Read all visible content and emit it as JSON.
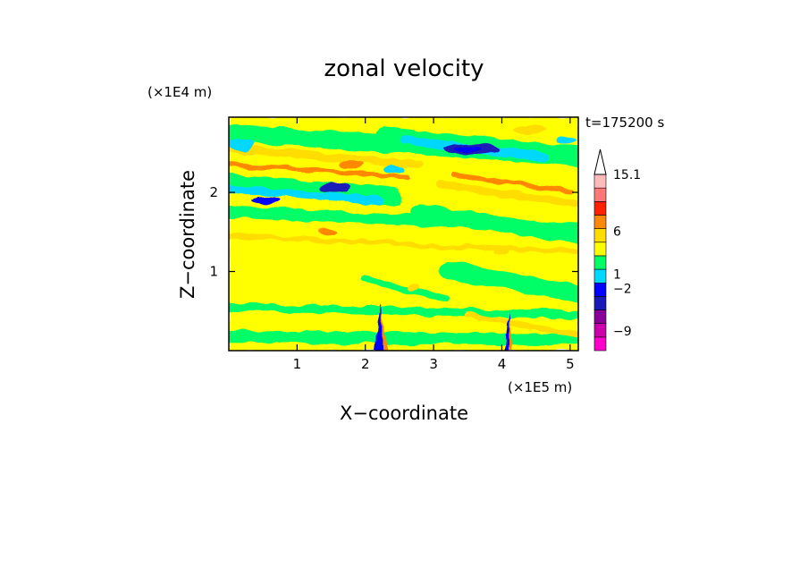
{
  "chart_data": {
    "type": "heatmap",
    "title": "zonal velocity",
    "xlabel": "X−coordinate",
    "ylabel": "Z−coordinate",
    "x_unit": "(×1E5 m)",
    "y_unit": "(×1E4 m)",
    "time_label": "t=175200 s",
    "xlim": [
      0,
      5.12
    ],
    "ylim": [
      0,
      2.95
    ],
    "x_ticks": [
      1,
      2,
      3,
      4,
      5
    ],
    "y_ticks": [
      1,
      2
    ],
    "colorbar": {
      "labeled_levels": [
        "15.1",
        "6",
        "1",
        "−2",
        "−9"
      ],
      "colors": [
        "#ff00cc",
        "#cc00aa",
        "#880099",
        "#1a1ab8",
        "#0000ff",
        "#00d8ff",
        "#00ff66",
        "#ffff00",
        "#ffdd00",
        "#ff8800",
        "#ff2200",
        "#ff7777",
        "#ffbbbb"
      ],
      "extend": "max"
    },
    "features": [
      {
        "kind": "jet",
        "sign": "positive",
        "x": [
          0.5,
          2.5
        ],
        "z": [
          2.25,
          2.45
        ],
        "value": 6
      },
      {
        "kind": "jet",
        "sign": "negative",
        "x": [
          1.5,
          2.1
        ],
        "z": [
          2.05,
          2.15
        ],
        "value": -9
      },
      {
        "kind": "jet",
        "sign": "negative",
        "x": [
          3.3,
          4.0
        ],
        "z": [
          2.45,
          2.6
        ],
        "value": -9
      },
      {
        "kind": "jet",
        "sign": "positive",
        "x": [
          3.4,
          4.8
        ],
        "z": [
          2.0,
          2.15
        ],
        "value": 6
      },
      {
        "kind": "mountain-wave",
        "sign": "negative",
        "x": [
          2.15,
          2.3
        ],
        "z": [
          0.0,
          0.6
        ],
        "value": -9
      },
      {
        "kind": "mountain-wave",
        "sign": "negative",
        "x": [
          4.05,
          4.15
        ],
        "z": [
          0.0,
          0.5
        ],
        "value": -9
      }
    ]
  }
}
